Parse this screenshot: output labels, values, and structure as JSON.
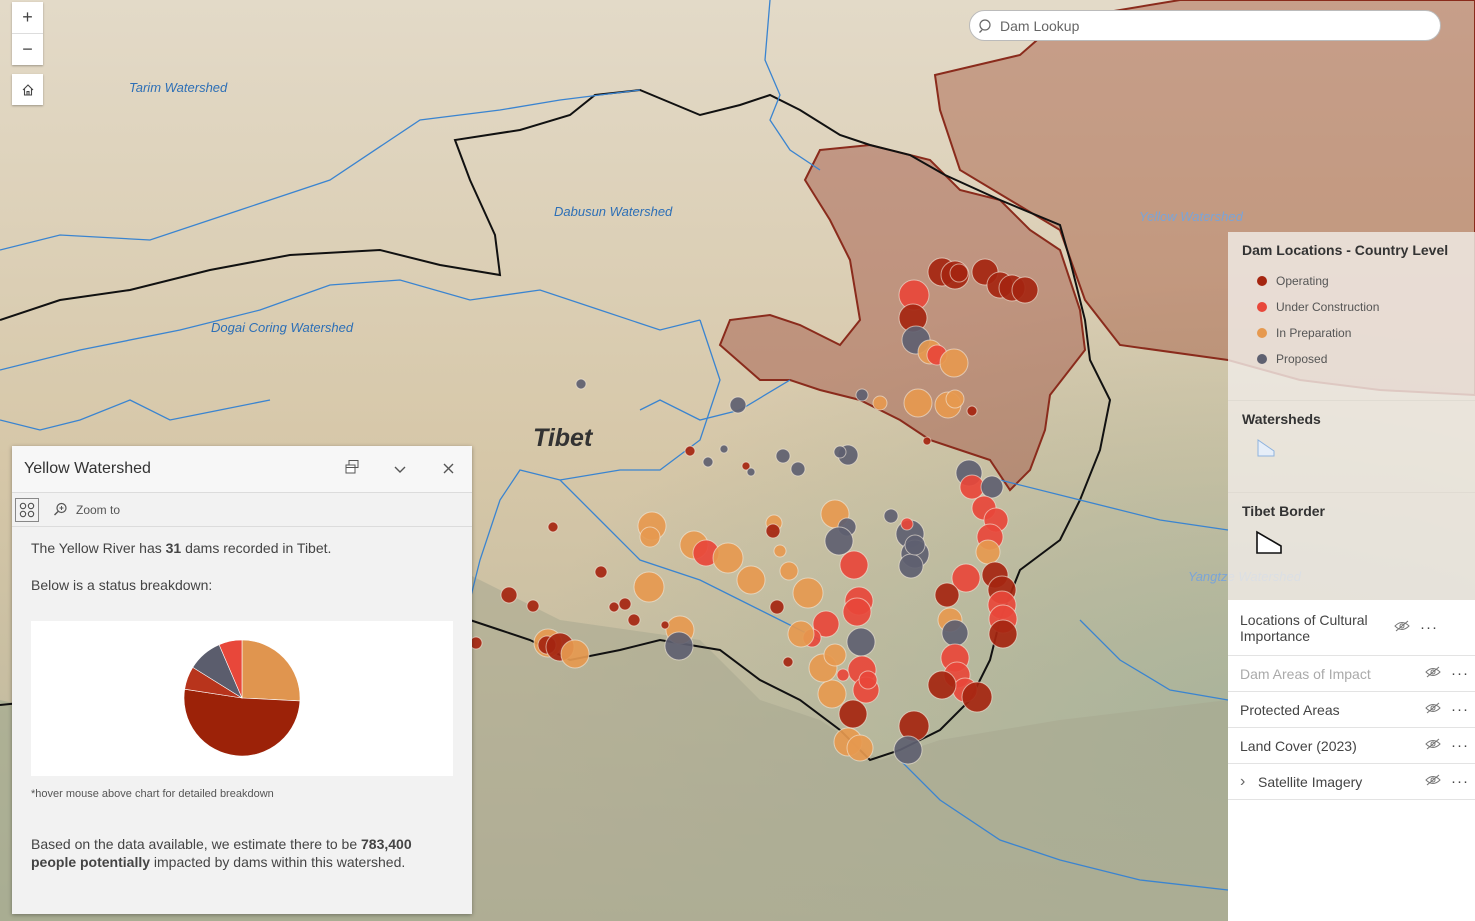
{
  "search": {
    "placeholder": "Dam Lookup"
  },
  "map": {
    "labels": {
      "tarim": "Tarim Watershed",
      "dabusun": "Dabusun Watershed",
      "dogai": "Dogai Coring Watershed",
      "yellow": "Yellow Watershed",
      "yangtze": "Yangtze Watershed",
      "tibet": "Tibet"
    },
    "zoom_in": "+",
    "zoom_out": "−"
  },
  "legend": {
    "title": "Dam Locations - Country Level",
    "items": [
      {
        "label": "Operating",
        "color": "#a52510"
      },
      {
        "label": "Under Construction",
        "color": "#e8473a"
      },
      {
        "label": "In Preparation",
        "color": "#e6994f"
      },
      {
        "label": "Proposed",
        "color": "#5e6070"
      }
    ],
    "watersheds_title": "Watersheds",
    "border_title": "Tibet Border"
  },
  "layers": [
    {
      "name": "Locations of Cultural Importance",
      "dimmed": false
    },
    {
      "name": "Dam Areas of Impact",
      "dimmed": true
    },
    {
      "name": "Protected Areas",
      "dimmed": false
    },
    {
      "name": "Land Cover (2023)",
      "dimmed": false
    },
    {
      "name": "Satellite Imagery",
      "dimmed": false
    }
  ],
  "popup": {
    "title": "Yellow Watershed",
    "zoom_to": "Zoom to",
    "intro_pre": "The Yellow River has ",
    "intro_count": "31",
    "intro_post": " dams recorded in Tibet.",
    "breakdown_label": "Below is a status breakdown:",
    "hover_note": "*hover mouse above chart for detailed breakdown",
    "impact_pre": "Based on the data available, we estimate there to be ",
    "impact_count": "783,400",
    "impact_bold": "people potentially",
    "impact_post": " impacted by dams within this watershed."
  },
  "chart_data": {
    "type": "pie",
    "title": "",
    "slices": [
      {
        "label": "In Preparation",
        "value": 8,
        "color": "#e0954f"
      },
      {
        "label": "Operating",
        "value": 16,
        "color": "#9c2208"
      },
      {
        "label": "Operating (dark)",
        "value": 2,
        "color": "#b8341c"
      },
      {
        "label": "Proposed",
        "value": 3,
        "color": "#5b5d6d"
      },
      {
        "label": "Under Construction",
        "value": 2,
        "color": "#e8473a"
      }
    ]
  }
}
